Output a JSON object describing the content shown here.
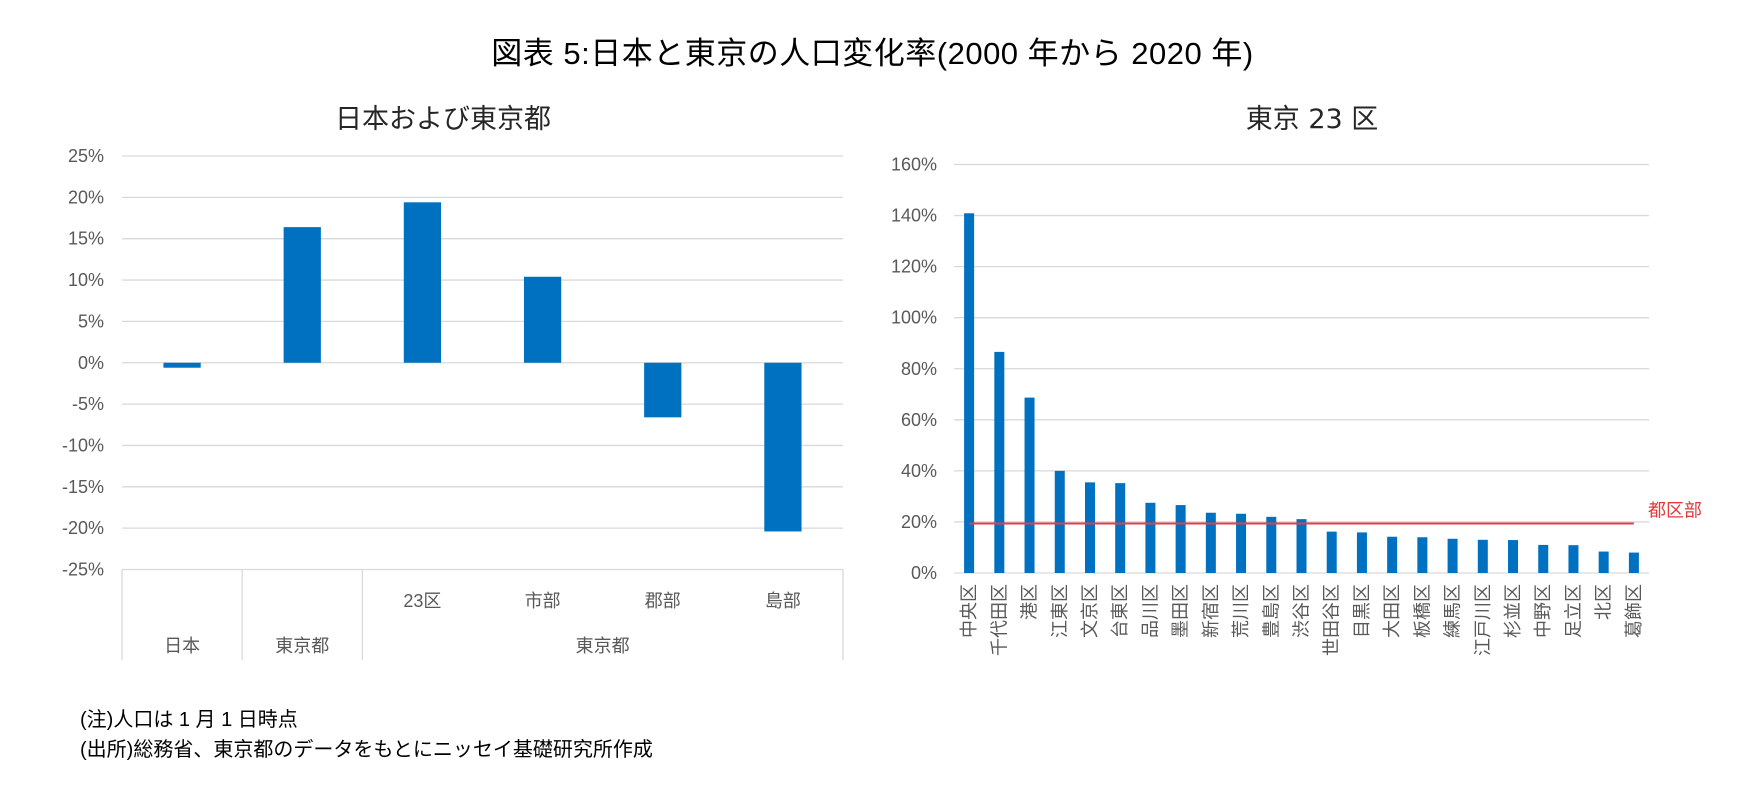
{
  "figure": {
    "title": "図表 5:日本と東京の人口変化率(2000 年から 2020 年)",
    "notes": [
      "(注)人口は 1 月 1 日時点",
      "(出所)総務省、東京都のデータをもとにニッセイ基礎研究所作成"
    ]
  },
  "colors": {
    "bar": "#0070C0",
    "reference_line": "#E0404A",
    "gridline": "#D9D9D9",
    "tick_text": "#595959"
  },
  "chart_data": [
    {
      "type": "bar",
      "title": "日本および東京都",
      "xlabel": "",
      "ylabel": "",
      "ylim": [
        -25,
        25
      ],
      "yticks": [
        25,
        20,
        15,
        10,
        5,
        0,
        -5,
        -10,
        -15,
        -20,
        -25
      ],
      "ytick_labels": [
        "25%",
        "20%",
        "15%",
        "10%",
        "5%",
        "0%",
        "-5%",
        "-10%",
        "-15%",
        "-20%",
        "-25%"
      ],
      "grid": true,
      "categories": [
        "日本",
        "東京都",
        "23区",
        "市部",
        "郡部",
        "島部"
      ],
      "category_groups": [
        {
          "label": "日本",
          "members": [
            "日本"
          ]
        },
        {
          "label": "東京都",
          "members": [
            "東京都"
          ]
        },
        {
          "label": "東京都",
          "members": [
            "23区",
            "市部",
            "郡部",
            "島部"
          ]
        }
      ],
      "values": [
        -0.6,
        16.4,
        19.4,
        10.4,
        -6.6,
        -20.4
      ],
      "unit": "%"
    },
    {
      "type": "bar",
      "title": "東京 23 区",
      "xlabel": "",
      "ylabel": "",
      "ylim": [
        0,
        160
      ],
      "yticks": [
        160,
        140,
        120,
        100,
        80,
        60,
        40,
        20,
        0
      ],
      "ytick_labels": [
        "160%",
        "140%",
        "120%",
        "100%",
        "80%",
        "60%",
        "40%",
        "20%",
        "0%"
      ],
      "grid": true,
      "categories": [
        "中央区",
        "千代田区",
        "港区",
        "江東区",
        "文京区",
        "台東区",
        "品川区",
        "墨田区",
        "新宿区",
        "荒川区",
        "豊島区",
        "渋谷区",
        "世田谷区",
        "目黒区",
        "大田区",
        "板橋区",
        "練馬区",
        "江戸川区",
        "杉並区",
        "中野区",
        "足立区",
        "北区",
        "葛飾区"
      ],
      "values": [
        140.9,
        86.6,
        68.7,
        40.0,
        35.5,
        35.2,
        27.5,
        26.6,
        23.6,
        23.2,
        22.0,
        21.1,
        16.2,
        15.9,
        14.2,
        14.0,
        13.4,
        13.0,
        12.9,
        11.0,
        10.9,
        8.4,
        8.0
      ],
      "reference_line": {
        "label": "都区部",
        "value": 19.4
      },
      "unit": "%"
    }
  ]
}
